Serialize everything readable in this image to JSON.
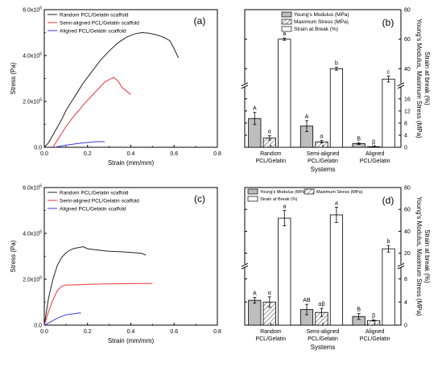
{
  "chart_data": [
    {
      "panel": "(a)",
      "type": "line",
      "xlabel": "Strain (mm/mm)",
      "ylabel": "Stress (Pa)",
      "xlim": [
        0,
        0.8
      ],
      "ylim": [
        0,
        6000000
      ],
      "xticks": [
        "0.0",
        "0.2",
        "0.4",
        "0.6",
        "0.8"
      ],
      "yticks": [
        "0.0",
        "2.0x10⁶",
        "4.0x10⁶",
        "6.0x10⁶"
      ],
      "legend": "top-left",
      "series": [
        {
          "name": "Random PCL/Gelatin scaffold",
          "color": "#222222",
          "x": [
            0.0,
            0.02,
            0.05,
            0.08,
            0.1,
            0.14,
            0.18,
            0.22,
            0.26,
            0.3,
            0.34,
            0.38,
            0.42,
            0.45,
            0.48,
            0.52,
            0.55,
            0.58,
            0.6,
            0.62
          ],
          "y": [
            0,
            200000,
            700000,
            1200000,
            1600000,
            2200000,
            2800000,
            3300000,
            3800000,
            4200000,
            4550000,
            4800000,
            4950000,
            5000000,
            4980000,
            4900000,
            4800000,
            4650000,
            4300000,
            3900000
          ]
        },
        {
          "name": "Semi-aligned PCL/Gelatin scaffold",
          "color": "#e8343a",
          "x": [
            0.04,
            0.06,
            0.08,
            0.1,
            0.12,
            0.14,
            0.16,
            0.18,
            0.2,
            0.22,
            0.24,
            0.26,
            0.28,
            0.3,
            0.32,
            0.34,
            0.36,
            0.38,
            0.4
          ],
          "y": [
            0,
            300000,
            600000,
            900000,
            1150000,
            1400000,
            1600000,
            1850000,
            2050000,
            2250000,
            2450000,
            2650000,
            2850000,
            2950000,
            3050000,
            2900000,
            2600000,
            2450000,
            2300000
          ]
        },
        {
          "name": "Aligned PCL/Gelatin scaffold",
          "color": "#3a3ad8",
          "x": [
            0.05,
            0.08,
            0.12,
            0.16,
            0.2,
            0.24,
            0.27,
            0.28
          ],
          "y": [
            0,
            60000,
            120000,
            170000,
            210000,
            240000,
            250000,
            230000
          ]
        }
      ]
    },
    {
      "panel": "(b)",
      "type": "bar",
      "xlabel": "Systems",
      "ylabel": "Young's Modulus, Maximum Stress (MPa)\nStrain at break (%)",
      "categories": [
        "Random\nPCL/Gelatin",
        "Semi-aligned\nPCL/Gelatin",
        "Aligned\nPCL/Gelatin"
      ],
      "axis_break": {
        "lower": [
          0,
          20
        ],
        "upper": [
          30,
          80
        ]
      },
      "yticks_lower": [
        0,
        4,
        8,
        12,
        16
      ],
      "yticks_upper": [
        40,
        60,
        80
      ],
      "legend": "top-center",
      "series": [
        {
          "name": "Young's Modulus (MPa)",
          "fill": "#bdbdbd",
          "values": [
            9.5,
            7.0,
            1.2
          ],
          "errors": [
            2.0,
            1.8,
            0.3
          ],
          "labels": [
            "A",
            "A",
            "B"
          ]
        },
        {
          "name": "Maximum Stress (MPa)",
          "fill": "hatch",
          "values": [
            3.1,
            1.8,
            0.2
          ],
          "errors": [
            0.7,
            0.4,
            0.1
          ],
          "labels": [
            "α",
            "α",
            "β"
          ]
        },
        {
          "name": "Strain at Break (%)",
          "fill": "#ffffff",
          "values": [
            60,
            40,
            33
          ],
          "errors": [
            0.8,
            1.0,
            2.0
          ],
          "labels": [
            "a",
            "b",
            "c"
          ]
        }
      ]
    },
    {
      "panel": "(c)",
      "type": "line",
      "xlabel": "Strain (mm/mm)",
      "ylabel": "Stress (Pa)",
      "xlim": [
        0,
        0.8
      ],
      "ylim": [
        0,
        6000000
      ],
      "xticks": [
        "0.0",
        "0.2",
        "0.4",
        "0.6",
        "0.8"
      ],
      "yticks": [
        "0.0",
        "2.0x10⁶",
        "4.0x10⁶",
        "6.0x10⁶"
      ],
      "legend": "top-left",
      "series": [
        {
          "name": "Random PCL/Gelatin scaffold",
          "color": "#222222",
          "x": [
            0.0,
            0.01,
            0.02,
            0.04,
            0.06,
            0.08,
            0.1,
            0.12,
            0.14,
            0.16,
            0.18,
            0.2,
            0.25,
            0.3,
            0.35,
            0.4,
            0.45,
            0.47
          ],
          "y": [
            0,
            600000,
            1200000,
            2000000,
            2600000,
            2950000,
            3150000,
            3280000,
            3350000,
            3380000,
            3420000,
            3330000,
            3270000,
            3220000,
            3200000,
            3170000,
            3130000,
            3050000
          ]
        },
        {
          "name": "Semi-aligned PCL/Gelatin scaffold",
          "color": "#e8343a",
          "x": [
            0.0,
            0.01,
            0.02,
            0.04,
            0.06,
            0.08,
            0.1,
            0.15,
            0.2,
            0.3,
            0.4,
            0.5
          ],
          "y": [
            0,
            300000,
            600000,
            1100000,
            1500000,
            1700000,
            1750000,
            1760000,
            1780000,
            1800000,
            1810000,
            1820000
          ]
        },
        {
          "name": "Aligned PCL/Gelatin scaffold",
          "color": "#3a3ad8",
          "x": [
            0.0,
            0.02,
            0.04,
            0.06,
            0.08,
            0.1,
            0.12,
            0.14,
            0.16,
            0.17
          ],
          "y": [
            0,
            100000,
            200000,
            300000,
            380000,
            450000,
            480000,
            500000,
            530000,
            520000
          ]
        }
      ]
    },
    {
      "panel": "(d)",
      "type": "bar",
      "xlabel": "Systems",
      "ylabel": "Young's Modulus, Maximum Stress (MPa)\nStrain at break (%)",
      "categories": [
        "Random\nPCL/Gelatin",
        "Semi-aligned\nPCL/Gelatin",
        "Aligned\nPCL/Gelatin"
      ],
      "axis_break": {
        "lower": [
          0,
          10
        ],
        "upper": [
          10,
          80
        ]
      },
      "yticks_lower": [
        0,
        4,
        8
      ],
      "yticks_upper": [
        20,
        40,
        60,
        80
      ],
      "legend": "top-left",
      "series": [
        {
          "name": "Young's Modulus (MPa)",
          "fill": "#bdbdbd",
          "values": [
            4.3,
            2.7,
            1.5
          ],
          "errors": [
            0.5,
            0.9,
            0.5
          ],
          "labels": [
            "A",
            "AB",
            "B"
          ]
        },
        {
          "name": "Maximum Stress (MPa)",
          "fill": "hatch",
          "values": [
            4.0,
            2.2,
            0.8
          ],
          "errors": [
            0.9,
            0.7,
            0.1
          ],
          "labels": [
            "α",
            "αβ",
            "β"
          ]
        },
        {
          "name": "Strain at Break (%)",
          "fill": "#ffffff",
          "values": [
            52,
            55,
            24
          ],
          "errors": [
            7,
            7,
            3
          ],
          "labels": [
            "a",
            "a",
            "b"
          ]
        }
      ]
    }
  ]
}
